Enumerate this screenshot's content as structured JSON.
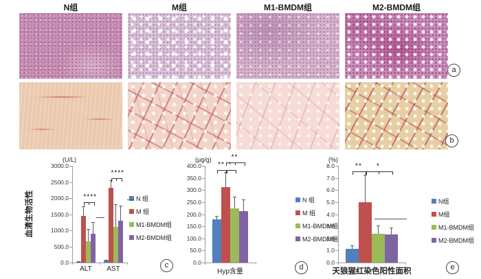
{
  "micrographs": {
    "columns": [
      {
        "title": "N组"
      },
      {
        "title": "M组"
      },
      {
        "title": "M1-BMDM组"
      },
      {
        "title": "M2-BMDM组"
      }
    ]
  },
  "panel_labels": {
    "a": "a",
    "b": "b",
    "c": "c",
    "d": "d",
    "e": "e"
  },
  "chart_data": [
    {
      "type": "bar",
      "unit_label": "(U/L)",
      "ylabel": "血清生物活性",
      "ylim": [
        0,
        3000
      ],
      "ystep": 500,
      "grid": false,
      "legend_position": "right",
      "categories": [
        "ALT",
        "AST"
      ],
      "series": [
        {
          "name": "N 组",
          "color": "#4f81bd",
          "values": [
            30,
            70
          ],
          "errors": [
            15,
            25
          ]
        },
        {
          "name": "M 组",
          "color": "#c0504d",
          "values": [
            1440,
            2320
          ],
          "errors": [
            310,
            230
          ]
        },
        {
          "name": "M1-BMDM组",
          "color": "#9bbb59",
          "values": [
            660,
            1110
          ],
          "errors": [
            390,
            690
          ]
        },
        {
          "name": "M2-BMDM组",
          "color": "#8064a2",
          "values": [
            900,
            1300
          ],
          "errors": [
            350,
            460
          ]
        }
      ],
      "annotations": [
        {
          "type": "bracket",
          "label": "****",
          "cat": 0,
          "from": 1,
          "to": 3,
          "y": 1870
        },
        {
          "type": "bracket",
          "label": "****",
          "cat": 1,
          "from": 1,
          "to": 3,
          "y": 2620
        },
        {
          "type": "line",
          "y": 1400,
          "x1": 0.44,
          "x2": 0.59
        },
        {
          "type": "line",
          "y": 1950,
          "x1": 1.0,
          "x2": 1.13
        }
      ]
    },
    {
      "type": "bar",
      "unit_label": "(μg/g)",
      "ylabel": "",
      "ylim": [
        0,
        400
      ],
      "ystep": 50,
      "grid": false,
      "legend_position": "right",
      "categories": [
        "Hyp含量"
      ],
      "series": [
        {
          "name": "N 组",
          "color": "#4f81bd",
          "values": [
            178
          ],
          "errors": [
            14
          ]
        },
        {
          "name": "M 组",
          "color": "#c0504d",
          "values": [
            312
          ],
          "errors": [
            63
          ]
        },
        {
          "name": "M1-BMDM组",
          "color": "#9bbb59",
          "values": [
            225
          ],
          "errors": [
            47
          ]
        },
        {
          "name": "M2-BMDM组",
          "color": "#8064a2",
          "values": [
            212
          ],
          "errors": [
            50
          ]
        }
      ],
      "annotations": [
        {
          "type": "bracket",
          "label": "**",
          "cat": 0,
          "from": 0,
          "to": 1,
          "y": 383
        },
        {
          "type": "bracket",
          "label": "*",
          "cat": 0,
          "from": 1,
          "to": 2,
          "y": 383
        },
        {
          "type": "bracket",
          "label": "**",
          "cat": 0,
          "from": 1,
          "to": 3,
          "y": 415
        }
      ]
    },
    {
      "type": "bar",
      "unit_label": "(%)",
      "ylabel": "",
      "ylim": [
        0,
        8
      ],
      "ystep": 1,
      "grid": false,
      "legend_position": "right",
      "categories": [
        "天狼猩红染色阳性面积"
      ],
      "series": [
        {
          "name": "N组",
          "color": "#4f81bd",
          "values": [
            1.15
          ],
          "errors": [
            0.25
          ]
        },
        {
          "name": "M组",
          "color": "#c0504d",
          "values": [
            5.0
          ],
          "errors": [
            2.25
          ]
        },
        {
          "name": "M1-BMDM组",
          "color": "#9bbb59",
          "values": [
            2.4
          ],
          "errors": [
            0.65
          ]
        },
        {
          "name": "M2-BMDM组",
          "color": "#8064a2",
          "values": [
            2.3
          ],
          "errors": [
            0.6
          ]
        }
      ],
      "annotations": [
        {
          "type": "bracket",
          "label": "**",
          "cat": 0,
          "from": 0,
          "to": 1,
          "y": 7.55
        },
        {
          "type": "bracket",
          "label": "*",
          "cat": 0,
          "from": 1,
          "to": 3,
          "y": 7.55
        },
        {
          "type": "line",
          "y": 3.65,
          "x1": 0.54,
          "x2": 1.02
        }
      ]
    }
  ]
}
